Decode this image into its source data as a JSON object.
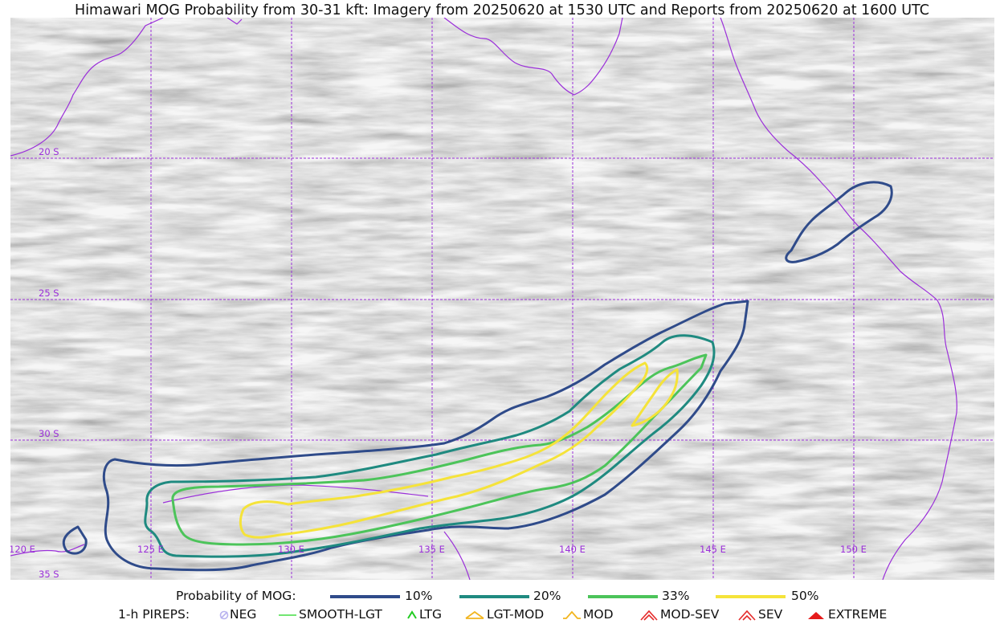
{
  "title": "Himawari MOG Probability from 30-31 kft: Imagery from 20250620 at 1530 UTC and Reports from 20250620 at 1600 UTC",
  "map": {
    "lat_labels": [
      "20 S",
      "25 S",
      "30 S",
      "35 S"
    ],
    "lon_labels": [
      "120 E",
      "125 E",
      "130 E",
      "135 E",
      "140 E",
      "145 E",
      "150 E"
    ],
    "gridline_color": "#9b30d9",
    "coastline_color": "#9b30d9",
    "background": "satellite water-vapor texture (grayscale)"
  },
  "contour_colors": {
    "p10": "#2f4b8a",
    "p20": "#1f8a80",
    "p33": "#4cc45a",
    "p50": "#f5e33a"
  },
  "legend": {
    "prob_label": "Probability of MOG:",
    "prob_items": [
      {
        "label": "10%",
        "color": "#2f4b8a"
      },
      {
        "label": "20%",
        "color": "#1f8a80"
      },
      {
        "label": "33%",
        "color": "#4cc45a"
      },
      {
        "label": "50%",
        "color": "#f5e33a"
      }
    ],
    "pirep_label": "1-h PIREPS:",
    "pirep_items": [
      {
        "label": "NEG",
        "icon": "neg-icon",
        "color": "#b9b3ef"
      },
      {
        "label": "SMOOTH-LGT",
        "icon": "smooth-lgt-icon",
        "color": "#44dd44"
      },
      {
        "label": "LTG",
        "icon": "ltg-icon",
        "color": "#22cc22"
      },
      {
        "label": "LGT-MOD",
        "icon": "lgt-mod-icon",
        "color": "#f2b51f"
      },
      {
        "label": "MOD",
        "icon": "mod-icon",
        "color": "#f2b51f"
      },
      {
        "label": "MOD-SEV",
        "icon": "mod-sev-icon",
        "color": "#e52b2b"
      },
      {
        "label": "SEV",
        "icon": "sev-icon",
        "color": "#e52b2b"
      },
      {
        "label": "EXTREME",
        "icon": "extreme-icon",
        "color": "#e51b1b"
      }
    ]
  }
}
